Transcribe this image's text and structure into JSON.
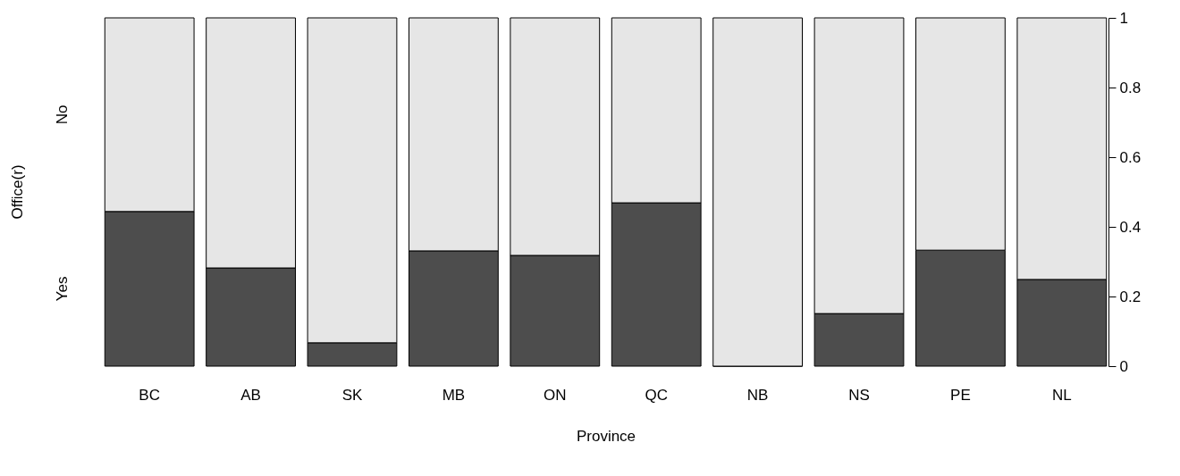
{
  "chart_data": {
    "type": "bar",
    "stacked": true,
    "xlabel": "Province",
    "ylabel": "Office(r)",
    "categories": [
      "BC",
      "AB",
      "SK",
      "MB",
      "ON",
      "QC",
      "NB",
      "NS",
      "PE",
      "NL"
    ],
    "series": [
      {
        "name": "Yes",
        "color": "#4d4d4d",
        "values": [
          0.444,
          0.282,
          0.067,
          0.331,
          0.318,
          0.469,
          0.0,
          0.151,
          0.333,
          0.249
        ]
      },
      {
        "name": "No",
        "color": "#e6e6e6",
        "values": [
          0.556,
          0.718,
          0.933,
          0.669,
          0.682,
          0.531,
          1.0,
          0.849,
          0.667,
          0.751
        ]
      }
    ],
    "ylim": [
      0,
      1
    ],
    "yticks": [
      0,
      0.2,
      0.4,
      0.6,
      0.8,
      1
    ],
    "grid": false
  }
}
